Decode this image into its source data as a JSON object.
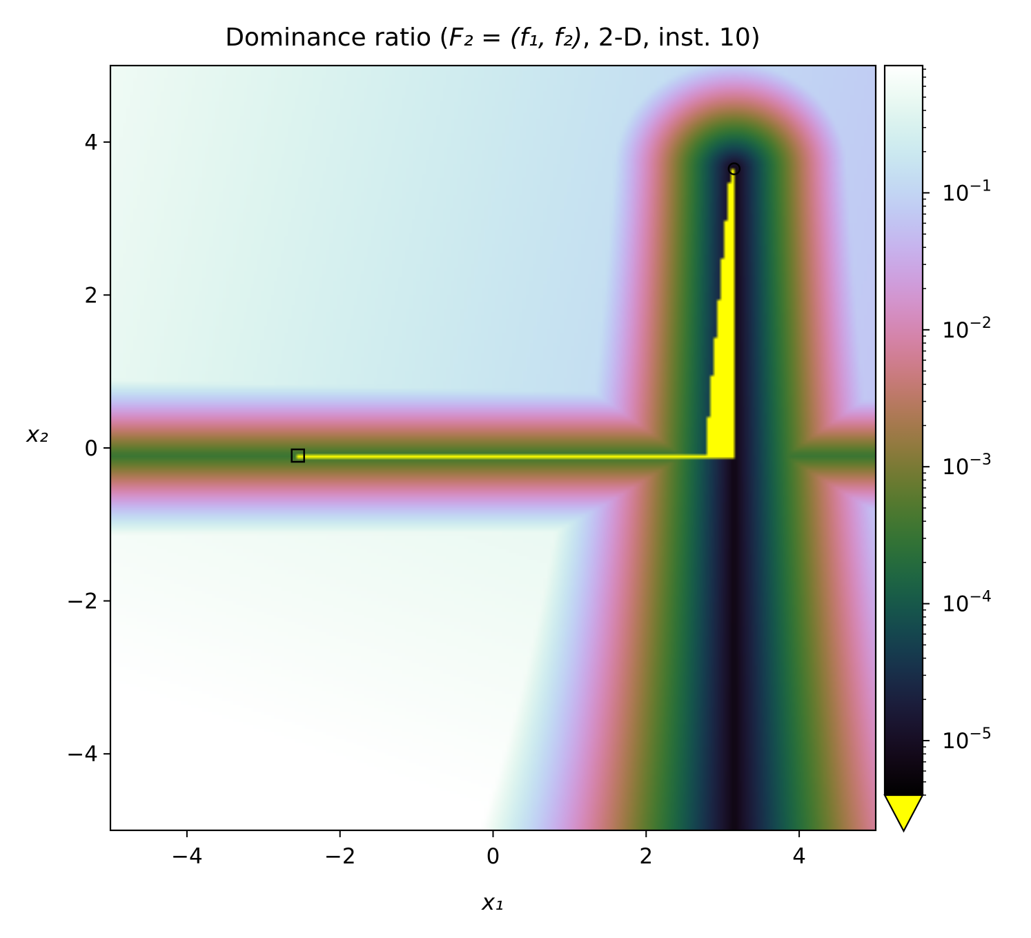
{
  "chart_data": {
    "type": "heatmap",
    "title": {
      "prefix": "Dominance ratio (",
      "math": "F₂ = (f₁, f₂)",
      "suffix": ", 2-D, inst. 10)"
    },
    "xlabel": "x₁",
    "ylabel": "x₂",
    "xlim": [
      -5,
      5
    ],
    "ylim": [
      -5,
      5
    ],
    "xticks": [
      {
        "value": -4,
        "label": "−4"
      },
      {
        "value": -2,
        "label": "−2"
      },
      {
        "value": 0,
        "label": "0"
      },
      {
        "value": 2,
        "label": "2"
      },
      {
        "value": 4,
        "label": "4"
      }
    ],
    "yticks": [
      {
        "value": -4,
        "label": "−4"
      },
      {
        "value": -2,
        "label": "−2"
      },
      {
        "value": 0,
        "label": "0"
      },
      {
        "value": 2,
        "label": "2"
      },
      {
        "value": 4,
        "label": "4"
      }
    ],
    "colorbar": {
      "scale": "log",
      "range": [
        4e-06,
        0.85
      ],
      "extend": "min",
      "under_color": "#ffff00",
      "colormap": "cubehelix",
      "ticks": [
        {
          "value": 0.1,
          "base": "10",
          "exp": "−1"
        },
        {
          "value": 0.01,
          "base": "10",
          "exp": "−2"
        },
        {
          "value": 0.001,
          "base": "10",
          "exp": "−3"
        },
        {
          "value": 0.0001,
          "base": "10",
          "exp": "−4"
        },
        {
          "value": 1e-05,
          "base": "10",
          "exp": "−5"
        }
      ]
    },
    "markers": [
      {
        "name": "optimum-f1",
        "shape": "circle",
        "x": 3.15,
        "y": 3.65
      },
      {
        "name": "optimum-f2",
        "shape": "square",
        "x": -2.55,
        "y": -0.1
      }
    ],
    "grid": false
  }
}
